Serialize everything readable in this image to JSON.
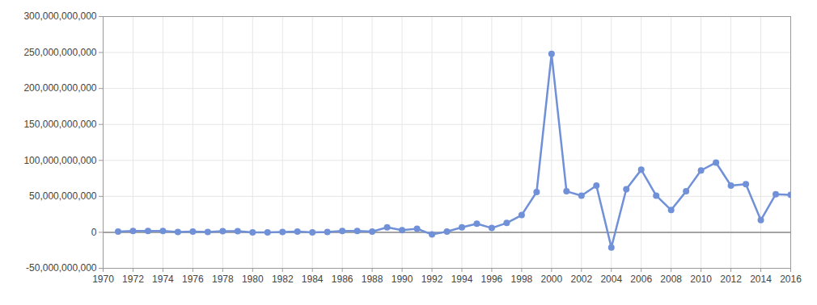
{
  "chart_data": {
    "type": "line",
    "x": [
      1971,
      1972,
      1973,
      1974,
      1975,
      1976,
      1977,
      1978,
      1979,
      1980,
      1981,
      1982,
      1983,
      1984,
      1985,
      1986,
      1987,
      1988,
      1989,
      1990,
      1991,
      1992,
      1993,
      1994,
      1995,
      1996,
      1997,
      1998,
      1999,
      2000,
      2001,
      2002,
      2003,
      2004,
      2005,
      2006,
      2007,
      2008,
      2009,
      2010,
      2011,
      2012,
      2013,
      2014,
      2015,
      2016
    ],
    "values": [
      1000000000,
      2000000000,
      2000000000,
      2000000000,
      500000000,
      1000000000,
      500000000,
      1500000000,
      1500000000,
      0,
      0,
      500000000,
      1000000000,
      0,
      500000000,
      2000000000,
      2000000000,
      1000000000,
      7000000000,
      3000000000,
      5000000000,
      -3000000000,
      1000000000,
      7000000000,
      12000000000,
      6000000000,
      13000000000,
      24000000000,
      56000000000,
      248000000000,
      57000000000,
      51000000000,
      65000000000,
      -21000000000,
      60000000000,
      87000000000,
      51000000000,
      31000000000,
      57000000000,
      86000000000,
      97000000000,
      65000000000,
      67000000000,
      17000000000,
      53000000000,
      52000000000
    ],
    "color": "#7090d8",
    "marker": "circle",
    "xlim": [
      1970,
      2016
    ],
    "xticks": [
      1970,
      1972,
      1974,
      1976,
      1978,
      1980,
      1982,
      1984,
      1986,
      1988,
      1990,
      1992,
      1994,
      1996,
      1998,
      2000,
      2002,
      2004,
      2006,
      2008,
      2010,
      2012,
      2014,
      2016
    ],
    "ylim": [
      -50000000000,
      300000000000
    ],
    "yticks": [
      {
        "value": -50000000000,
        "label": "-50,000,000,000"
      },
      {
        "value": 0,
        "label": "0"
      },
      {
        "value": 50000000000,
        "label": "50,000,000,000"
      },
      {
        "value": 100000000000,
        "label": "100,000,000,000"
      },
      {
        "value": 150000000000,
        "label": "150,000,000,000"
      },
      {
        "value": 200000000000,
        "label": "200,000,000,000"
      },
      {
        "value": 250000000000,
        "label": "250,000,000,000"
      },
      {
        "value": 300000000000,
        "label": "300,000,000,000"
      }
    ],
    "grid": true
  }
}
